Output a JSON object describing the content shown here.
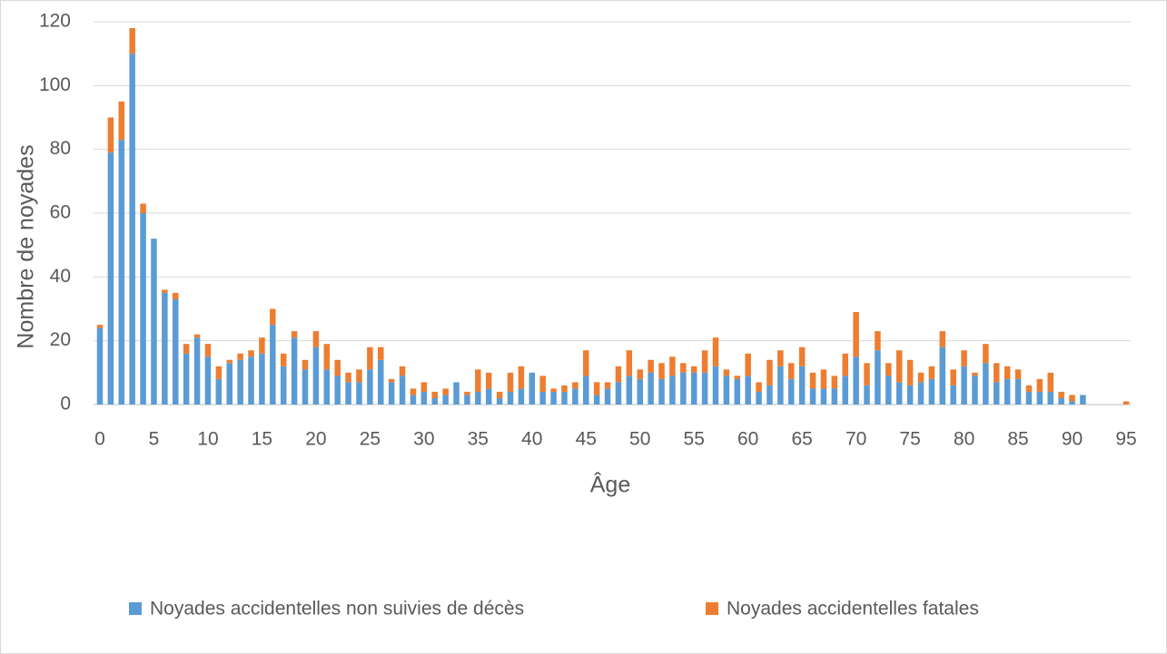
{
  "chart_data": {
    "type": "stacked_bar",
    "x_label": "Âge",
    "y_label": "Nombre de noyades",
    "x": [
      0,
      1,
      2,
      3,
      4,
      5,
      6,
      7,
      8,
      9,
      10,
      11,
      12,
      13,
      14,
      15,
      16,
      17,
      18,
      19,
      20,
      21,
      22,
      23,
      24,
      25,
      26,
      27,
      28,
      29,
      30,
      31,
      32,
      33,
      34,
      35,
      36,
      37,
      38,
      39,
      40,
      41,
      42,
      43,
      44,
      45,
      46,
      47,
      48,
      49,
      50,
      51,
      52,
      53,
      54,
      55,
      56,
      57,
      58,
      59,
      60,
      61,
      62,
      63,
      64,
      65,
      66,
      67,
      68,
      69,
      70,
      71,
      72,
      73,
      74,
      75,
      76,
      77,
      78,
      79,
      80,
      81,
      82,
      83,
      84,
      85,
      86,
      87,
      88,
      89,
      90,
      91,
      92,
      93,
      94,
      95
    ],
    "series": [
      {
        "name": "Noyades accidentelles non suivies de décès",
        "color": "#5b9bd5",
        "values": [
          24,
          79,
          83,
          110,
          60,
          52,
          35,
          33,
          16,
          21,
          15,
          8,
          13,
          14,
          15,
          16,
          25,
          12,
          21,
          11,
          18,
          11,
          9,
          7,
          7,
          11,
          14,
          7,
          9,
          3,
          4,
          2,
          3,
          7,
          3,
          4,
          5,
          2,
          4,
          5,
          10,
          4,
          4,
          4,
          5,
          9,
          3,
          5,
          7,
          9,
          8,
          10,
          8,
          9,
          10,
          10,
          10,
          12,
          9,
          8,
          9,
          4,
          6,
          12,
          8,
          12,
          5,
          5,
          5,
          9,
          15,
          6,
          17,
          9,
          7,
          6,
          7,
          8,
          18,
          6,
          12,
          9,
          13,
          7,
          8,
          8,
          4,
          4,
          4,
          2,
          1,
          3,
          0,
          0,
          0,
          0
        ]
      },
      {
        "name": "Noyades accidentelles fatales",
        "color": "#ed7d31",
        "values": [
          1,
          11,
          12,
          8,
          3,
          0,
          1,
          2,
          3,
          1,
          4,
          4,
          1,
          2,
          2,
          5,
          5,
          4,
          2,
          3,
          5,
          8,
          5,
          3,
          4,
          7,
          4,
          1,
          3,
          2,
          3,
          2,
          2,
          0,
          1,
          7,
          5,
          2,
          6,
          7,
          0,
          5,
          1,
          2,
          2,
          8,
          4,
          2,
          5,
          8,
          3,
          4,
          5,
          6,
          3,
          2,
          7,
          9,
          2,
          1,
          7,
          3,
          8,
          5,
          5,
          6,
          5,
          6,
          4,
          7,
          14,
          7,
          6,
          4,
          10,
          8,
          3,
          4,
          5,
          5,
          5,
          1,
          6,
          6,
          4,
          3,
          2,
          4,
          6,
          2,
          2,
          0,
          0,
          0,
          0,
          1
        ]
      }
    ],
    "xlim": [
      0,
      95
    ],
    "xticks": [
      0,
      5,
      10,
      15,
      20,
      25,
      30,
      35,
      40,
      45,
      50,
      55,
      60,
      65,
      70,
      75,
      80,
      85,
      90,
      95
    ],
    "ylim": [
      0,
      120
    ],
    "yticks": [
      0,
      20,
      40,
      60,
      80,
      100,
      120
    ],
    "grid": true,
    "legend": "bottom"
  }
}
